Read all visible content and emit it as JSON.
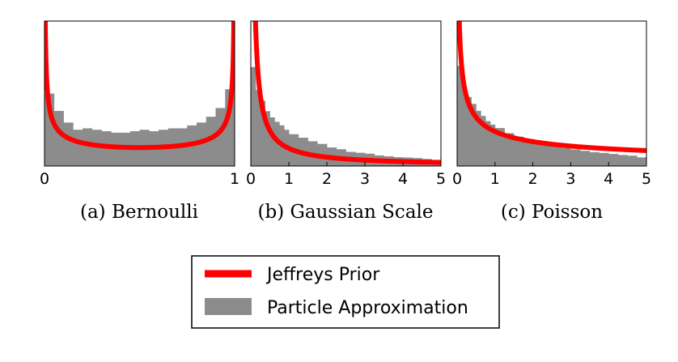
{
  "colors": {
    "curve": "#ff0000",
    "bars": "#8c8c8c",
    "frame": "#000000"
  },
  "legend": {
    "items": [
      {
        "label": "Jeffreys Prior",
        "color": "#ff0000",
        "kind": "line"
      },
      {
        "label": "Particle Approximation",
        "color": "#8c8c8c",
        "kind": "patch"
      }
    ]
  },
  "chart_data": [
    {
      "type": "bar",
      "caption": "(a)  Bernoulli",
      "xlim": [
        0,
        1
      ],
      "xticks": [
        "0",
        "1"
      ],
      "ylim": [
        0,
        5.0
      ],
      "bin_edges": [
        0,
        0.05,
        0.1,
        0.15,
        0.2,
        0.25,
        0.3,
        0.35,
        0.4,
        0.45,
        0.5,
        0.55,
        0.6,
        0.65,
        0.7,
        0.75,
        0.8,
        0.85,
        0.9,
        0.95,
        1.0
      ],
      "values": [
        2.5,
        1.9,
        1.5,
        1.25,
        1.3,
        1.25,
        1.2,
        1.15,
        1.15,
        1.2,
        1.25,
        1.2,
        1.25,
        1.3,
        1.3,
        1.4,
        1.5,
        1.7,
        2.0,
        2.65
      ],
      "curve": {
        "name": "Jeffreys Prior",
        "expr": "1/(pi*sqrt(x*(1-x)))"
      }
    },
    {
      "type": "bar",
      "caption": "(b)  Gaussian Scale",
      "xlim": [
        0,
        5
      ],
      "xticks": [
        "0",
        "1",
        "2",
        "3",
        "4",
        "5"
      ],
      "ylim": [
        0,
        8.2
      ],
      "bin_edges": [
        0,
        0.125,
        0.25,
        0.375,
        0.5,
        0.625,
        0.75,
        0.875,
        1.0,
        1.25,
        1.5,
        1.75,
        2.0,
        2.25,
        2.5,
        2.75,
        3.0,
        3.25,
        3.5,
        3.75,
        4.0,
        4.25,
        4.5,
        4.75,
        5.0
      ],
      "values": [
        5.6,
        4.3,
        3.7,
        3.1,
        2.75,
        2.5,
        2.3,
        2.05,
        1.8,
        1.6,
        1.4,
        1.25,
        1.05,
        0.95,
        0.8,
        0.75,
        0.7,
        0.6,
        0.55,
        0.5,
        0.48,
        0.45,
        0.4,
        0.35
      ],
      "curve": {
        "name": "Jeffreys Prior",
        "expr": "1/x"
      }
    },
    {
      "type": "bar",
      "caption": "(c)  Poisson",
      "xlim": [
        0,
        5
      ],
      "xticks": [
        "0",
        "1",
        "2",
        "3",
        "4",
        "5"
      ],
      "ylim": [
        0,
        4.2
      ],
      "bin_edges": [
        0,
        0.125,
        0.25,
        0.375,
        0.5,
        0.625,
        0.75,
        0.875,
        1.0,
        1.25,
        1.5,
        1.75,
        2.0,
        2.25,
        2.5,
        2.75,
        3.0,
        3.25,
        3.5,
        3.75,
        4.0,
        4.25,
        4.5,
        4.75,
        5.0
      ],
      "values": [
        2.9,
        2.3,
        2.0,
        1.8,
        1.6,
        1.45,
        1.3,
        1.2,
        1.1,
        0.95,
        0.85,
        0.78,
        0.7,
        0.65,
        0.58,
        0.52,
        0.48,
        0.44,
        0.4,
        0.38,
        0.35,
        0.32,
        0.3,
        0.25
      ],
      "curve": {
        "name": "Jeffreys Prior",
        "expr": "1/sqrt(x)"
      }
    }
  ]
}
